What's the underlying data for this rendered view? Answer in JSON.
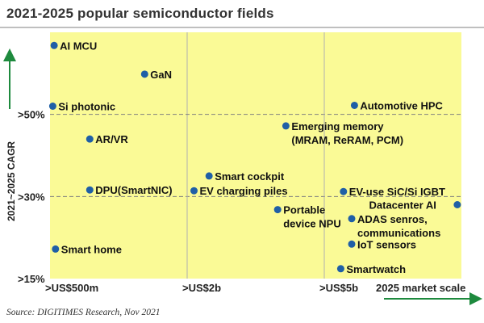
{
  "header": {
    "title": "2021-2025 popular semiconductor fields"
  },
  "footer": {
    "source": "Source: DIGITIMES Research, Nov 2021"
  },
  "colors": {
    "plot_bg": "#fafa96",
    "point": "#1f5fa6",
    "arrow": "#1e8a3e",
    "grid": "#808080"
  },
  "chart_data": {
    "type": "scatter",
    "title": "2021-2025 popular semiconductor fields",
    "xlabel": "2025 market scale",
    "ylabel": "2021~2025 CAGR",
    "x_ticks": [
      ">US$500m",
      ">US$2b",
      ">US$5b"
    ],
    "y_ticks": [
      ">15%",
      ">30%",
      ">50%"
    ],
    "xlim": [
      0,
      3
    ],
    "ylim": [
      0,
      3
    ],
    "axis_scale": "ordinal bands: x 0-1 >US$500m, 1-2 >US$2b, 2-3 >US$5b; y 0-1 >15%, 1-2 >30%, 2-3 >50%",
    "grid": "dashed lines at band boundaries",
    "points": [
      {
        "label": "AI MCU",
        "x": 0.03,
        "y": 2.84
      },
      {
        "label": "GaN",
        "x": 0.69,
        "y": 2.49
      },
      {
        "label": "Si photonic",
        "x": 0.02,
        "y": 2.1
      },
      {
        "label": "AR/VR",
        "x": 0.29,
        "y": 1.7
      },
      {
        "label": "DPU(SmartNIC)",
        "x": 0.29,
        "y": 1.08
      },
      {
        "label": "Smart cockpit",
        "x": 1.16,
        "y": 1.25
      },
      {
        "label": "EV charging piles",
        "x": 1.05,
        "y": 1.07
      },
      {
        "label": "Emerging memory\n(MRAM, ReRAM, PCM)",
        "x": 1.72,
        "y": 1.86
      },
      {
        "label": "Automotive HPC",
        "x": 2.22,
        "y": 2.11
      },
      {
        "label": "Portable\ndevice NPU",
        "x": 1.66,
        "y": 0.84
      },
      {
        "label": "EV-use SiC/Si IGBT",
        "x": 2.14,
        "y": 1.06
      },
      {
        "label": "Datacenter AI",
        "x": 2.97,
        "y": 0.9
      },
      {
        "label": "ADAS senros,\ncommunications",
        "x": 2.2,
        "y": 0.73
      },
      {
        "label": "IoT sensors",
        "x": 2.2,
        "y": 0.42
      },
      {
        "label": "Smartwatch",
        "x": 2.12,
        "y": 0.12
      },
      {
        "label": "Smart home",
        "x": 0.04,
        "y": 0.36
      }
    ]
  }
}
